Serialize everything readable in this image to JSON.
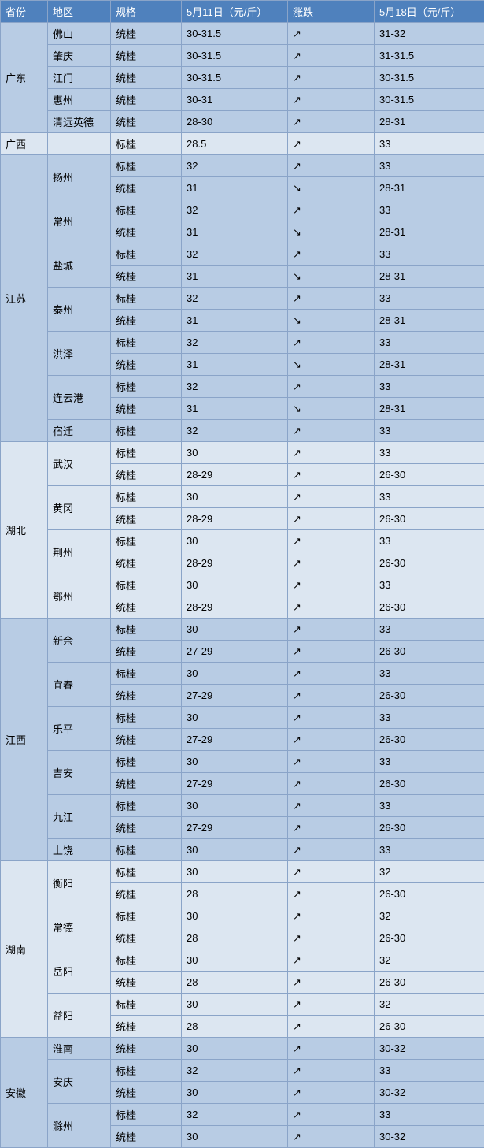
{
  "colors": {
    "header_bg": "#4f81bd",
    "header_fg": "#ffffff",
    "border": "#8aa4c8",
    "band_dark": "#b8cce4",
    "band_light": "#dce6f1",
    "text": "#2f2f2f"
  },
  "trend_glyphs": {
    "up": "↗",
    "down": "↘"
  },
  "columns": [
    {
      "key": "province",
      "label": "省份",
      "class": "c-prov"
    },
    {
      "key": "region",
      "label": "地区",
      "class": "c-reg"
    },
    {
      "key": "spec",
      "label": "规格",
      "class": "c-spec"
    },
    {
      "key": "p1",
      "label": "5月11日（元/斤）",
      "class": "c-p1"
    },
    {
      "key": "trend",
      "label": "涨跌",
      "class": "c-tr"
    },
    {
      "key": "p2",
      "label": "5月18日（元/斤）",
      "class": "c-p2"
    }
  ],
  "provinces": [
    {
      "name": "广东",
      "band": "dark",
      "regions": [
        {
          "name": "佛山",
          "rows": [
            {
              "spec": "统桂",
              "p1": "30-31.5",
              "trend": "up",
              "p2": "31-32"
            }
          ]
        },
        {
          "name": "肇庆",
          "rows": [
            {
              "spec": "统桂",
              "p1": "30-31.5",
              "trend": "up",
              "p2": "31-31.5"
            }
          ]
        },
        {
          "name": "江门",
          "rows": [
            {
              "spec": "统桂",
              "p1": "30-31.5",
              "trend": "up",
              "p2": "30-31.5"
            }
          ]
        },
        {
          "name": "惠州",
          "rows": [
            {
              "spec": "统桂",
              "p1": "30-31",
              "trend": "up",
              "p2": "30-31.5"
            }
          ]
        },
        {
          "name": "清远英德",
          "rows": [
            {
              "spec": "统桂",
              "p1": "28-30",
              "trend": "up",
              "p2": "28-31"
            }
          ]
        }
      ]
    },
    {
      "name": "广西",
      "band": "light",
      "regions": [
        {
          "name": "",
          "rows": [
            {
              "spec": "标桂",
              "p1": "28.5",
              "trend": "up",
              "p2": "33"
            }
          ]
        }
      ]
    },
    {
      "name": "江苏",
      "band": "dark",
      "regions": [
        {
          "name": "扬州",
          "rows": [
            {
              "spec": "标桂",
              "p1": "32",
              "trend": "up",
              "p2": "33"
            },
            {
              "spec": "统桂",
              "p1": "31",
              "trend": "down",
              "p2": "28-31"
            }
          ]
        },
        {
          "name": "常州",
          "rows": [
            {
              "spec": "标桂",
              "p1": "32",
              "trend": "up",
              "p2": "33"
            },
            {
              "spec": "统桂",
              "p1": "31",
              "trend": "down",
              "p2": "28-31"
            }
          ]
        },
        {
          "name": "盐城",
          "rows": [
            {
              "spec": "标桂",
              "p1": "32",
              "trend": "up",
              "p2": "33"
            },
            {
              "spec": "统桂",
              "p1": "31",
              "trend": "down",
              "p2": "28-31"
            }
          ]
        },
        {
          "name": "泰州",
          "rows": [
            {
              "spec": "标桂",
              "p1": "32",
              "trend": "up",
              "p2": "33"
            },
            {
              "spec": "统桂",
              "p1": "31",
              "trend": "down",
              "p2": "28-31"
            }
          ]
        },
        {
          "name": "洪泽",
          "rows": [
            {
              "spec": "标桂",
              "p1": "32",
              "trend": "up",
              "p2": "33"
            },
            {
              "spec": "统桂",
              "p1": "31",
              "trend": "down",
              "p2": "28-31"
            }
          ]
        },
        {
          "name": "连云港",
          "rows": [
            {
              "spec": "标桂",
              "p1": "32",
              "trend": "up",
              "p2": "33"
            },
            {
              "spec": "统桂",
              "p1": "31",
              "trend": "down",
              "p2": "28-31"
            }
          ]
        },
        {
          "name": "宿迁",
          "rows": [
            {
              "spec": "标桂",
              "p1": "32",
              "trend": "up",
              "p2": "33"
            }
          ]
        }
      ]
    },
    {
      "name": "湖北",
      "band": "light",
      "regions": [
        {
          "name": "武汉",
          "rows": [
            {
              "spec": "标桂",
              "p1": "30",
              "trend": "up",
              "p2": "33"
            },
            {
              "spec": "统桂",
              "p1": "28-29",
              "trend": "up",
              "p2": "26-30"
            }
          ]
        },
        {
          "name": "黄冈",
          "rows": [
            {
              "spec": "标桂",
              "p1": "30",
              "trend": "up",
              "p2": "33"
            },
            {
              "spec": "统桂",
              "p1": "28-29",
              "trend": "up",
              "p2": "26-30"
            }
          ]
        },
        {
          "name": "荆州",
          "rows": [
            {
              "spec": "标桂",
              "p1": "30",
              "trend": "up",
              "p2": "33"
            },
            {
              "spec": "统桂",
              "p1": "28-29",
              "trend": "up",
              "p2": "26-30"
            }
          ]
        },
        {
          "name": "鄂州",
          "rows": [
            {
              "spec": "标桂",
              "p1": "30",
              "trend": "up",
              "p2": "33"
            },
            {
              "spec": "统桂",
              "p1": "28-29",
              "trend": "up",
              "p2": "26-30"
            }
          ]
        }
      ]
    },
    {
      "name": "江西",
      "band": "dark",
      "regions": [
        {
          "name": "新余",
          "rows": [
            {
              "spec": "标桂",
              "p1": "30",
              "trend": "up",
              "p2": "33"
            },
            {
              "spec": "统桂",
              "p1": "27-29",
              "trend": "up",
              "p2": "26-30"
            }
          ]
        },
        {
          "name": "宜春",
          "rows": [
            {
              "spec": "标桂",
              "p1": "30",
              "trend": "up",
              "p2": "33"
            },
            {
              "spec": "统桂",
              "p1": "27-29",
              "trend": "up",
              "p2": "26-30"
            }
          ]
        },
        {
          "name": "乐平",
          "rows": [
            {
              "spec": "标桂",
              "p1": "30",
              "trend": "up",
              "p2": "33"
            },
            {
              "spec": "统桂",
              "p1": "27-29",
              "trend": "up",
              "p2": "26-30"
            }
          ]
        },
        {
          "name": "吉安",
          "rows": [
            {
              "spec": "标桂",
              "p1": "30",
              "trend": "up",
              "p2": "33"
            },
            {
              "spec": "统桂",
              "p1": "27-29",
              "trend": "up",
              "p2": "26-30"
            }
          ]
        },
        {
          "name": "九江",
          "rows": [
            {
              "spec": "标桂",
              "p1": "30",
              "trend": "up",
              "p2": "33"
            },
            {
              "spec": "统桂",
              "p1": "27-29",
              "trend": "up",
              "p2": "26-30"
            }
          ]
        },
        {
          "name": "上饶",
          "rows": [
            {
              "spec": "标桂",
              "p1": "30",
              "trend": "up",
              "p2": "33"
            }
          ]
        }
      ]
    },
    {
      "name": "湖南",
      "band": "light",
      "regions": [
        {
          "name": "衡阳",
          "rows": [
            {
              "spec": "标桂",
              "p1": "30",
              "trend": "up",
              "p2": "32"
            },
            {
              "spec": "统桂",
              "p1": "28",
              "trend": "up",
              "p2": "26-30"
            }
          ]
        },
        {
          "name": "常德",
          "rows": [
            {
              "spec": "标桂",
              "p1": "30",
              "trend": "up",
              "p2": "32"
            },
            {
              "spec": "统桂",
              "p1": "28",
              "trend": "up",
              "p2": "26-30"
            }
          ]
        },
        {
          "name": "岳阳",
          "rows": [
            {
              "spec": "标桂",
              "p1": "30",
              "trend": "up",
              "p2": "32"
            },
            {
              "spec": "统桂",
              "p1": "28",
              "trend": "up",
              "p2": "26-30"
            }
          ]
        },
        {
          "name": "益阳",
          "rows": [
            {
              "spec": "标桂",
              "p1": "30",
              "trend": "up",
              "p2": "32"
            },
            {
              "spec": "统桂",
              "p1": "28",
              "trend": "up",
              "p2": "26-30"
            }
          ]
        }
      ]
    },
    {
      "name": "安徽",
      "band": "dark",
      "regions": [
        {
          "name": "淮南",
          "rows": [
            {
              "spec": "统桂",
              "p1": "30",
              "trend": "up",
              "p2": "30-32"
            }
          ]
        },
        {
          "name": "安庆",
          "rows": [
            {
              "spec": "标桂",
              "p1": "32",
              "trend": "up",
              "p2": "33"
            },
            {
              "spec": "统桂",
              "p1": "30",
              "trend": "up",
              "p2": "30-32"
            }
          ]
        },
        {
          "name": "滁州",
          "rows": [
            {
              "spec": "标桂",
              "p1": "32",
              "trend": "up",
              "p2": "33"
            },
            {
              "spec": "统桂",
              "p1": "30",
              "trend": "up",
              "p2": "30-32"
            }
          ]
        }
      ]
    }
  ]
}
